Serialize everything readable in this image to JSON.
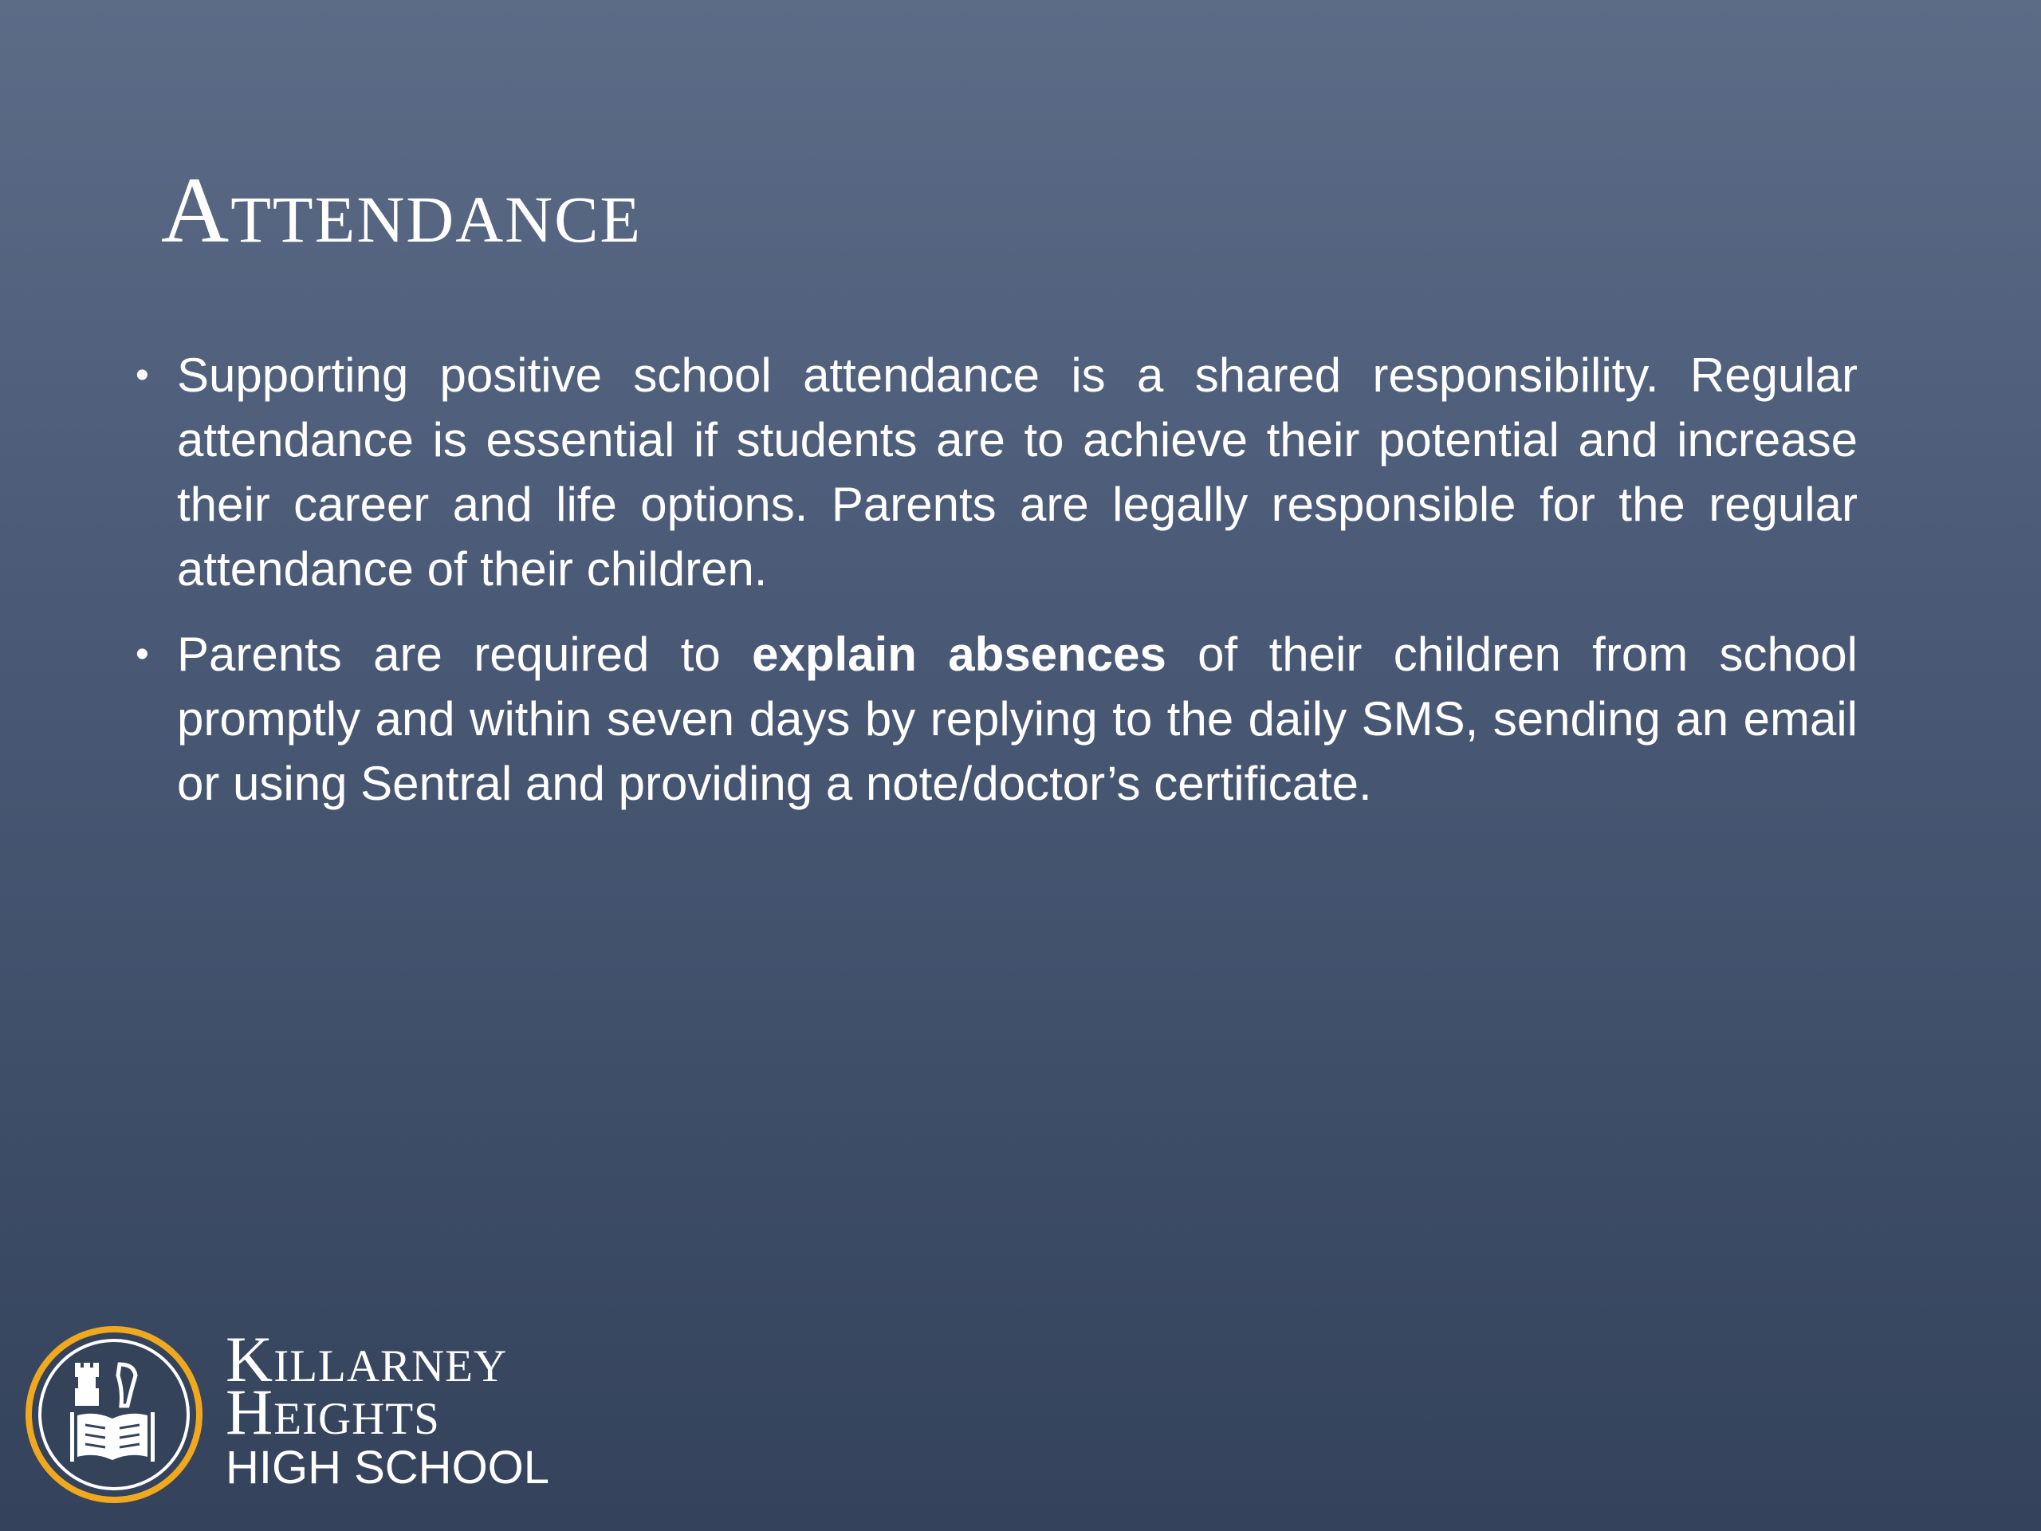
{
  "slide": {
    "title": "Attendance",
    "bullets": [
      {
        "text": "Supporting positive school attendance is a shared responsibility. Regular attendance is essential if students are to achieve their potential and increase their career and life options. Parents are legally responsible for the regular attendance of their children."
      },
      {
        "before": "Parents are required to ",
        "bold": "explain absences",
        "after": " of their children from school promptly and within seven days  by replying to the daily SMS, sending an email or using Sentral and providing a note/doctor’s certificate."
      }
    ],
    "bullet_glyph": "•"
  },
  "logo": {
    "line1": "Killarney",
    "line2": "Heights",
    "line3": "HIGH SCHOOL",
    "ring_color": "#f0a91e"
  }
}
